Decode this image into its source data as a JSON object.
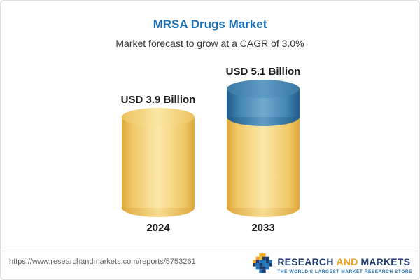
{
  "header": {
    "title": "MRSA Drugs Market",
    "subtitle": "Market forecast to grow at a CAGR of 3.0%"
  },
  "chart_data": {
    "type": "bar",
    "categories": [
      "2024",
      "2033"
    ],
    "values": [
      3.9,
      5.1
    ],
    "value_labels": [
      "USD 3.9 Billion",
      "USD 5.1 Billion"
    ],
    "unit": "USD Billion",
    "title": "MRSA Drugs Market",
    "subtitle": "Market forecast to grow at a CAGR of 3.0%",
    "cagr_percent": 3.0,
    "ylim": [
      0,
      5.1
    ],
    "grid": false,
    "legend": "none",
    "colors": {
      "bar_2024": "#f2cd72",
      "bar_2033_base": "#f2cd72",
      "bar_2033_growth": "#4689b6",
      "title_text": "#1b6fb5"
    }
  },
  "footer": {
    "url": "https://www.researchandmarkets.com/reports/5753261",
    "logo": {
      "research": "RESEARCH",
      "and": "AND",
      "markets": "MARKETS",
      "tagline": "THE WORLD'S LARGEST MARKET RESEARCH STORE"
    }
  }
}
